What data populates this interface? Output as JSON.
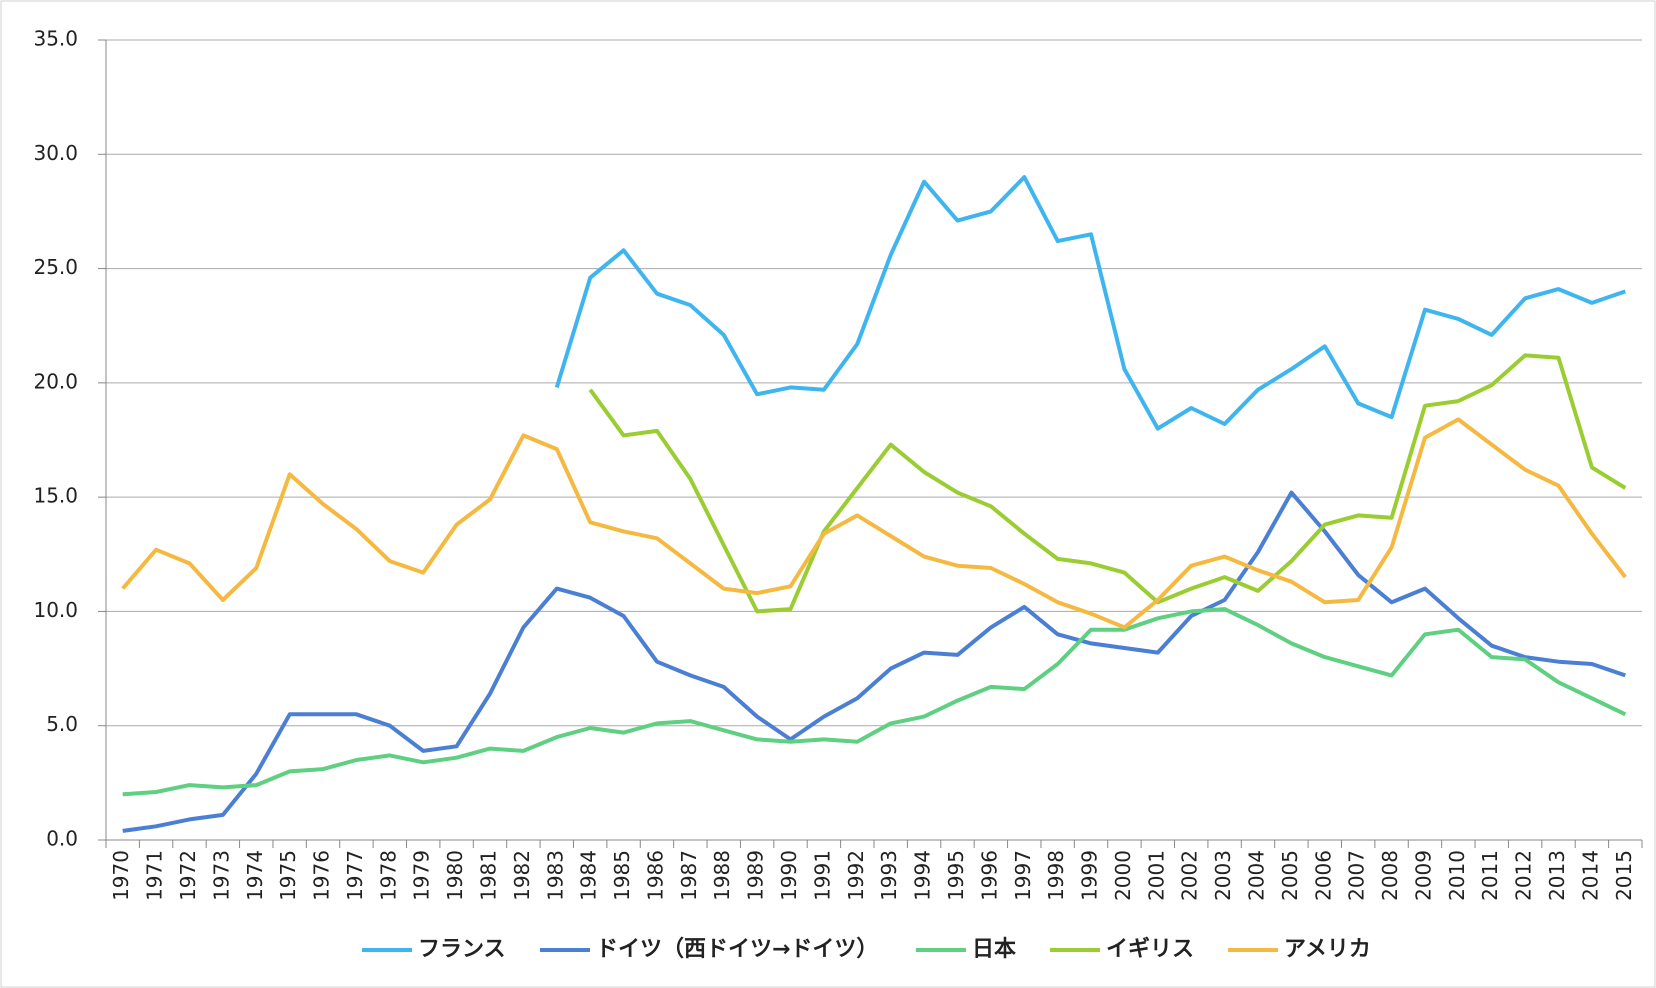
{
  "chart_data": {
    "type": "line",
    "categories": [
      "1970",
      "1971",
      "1972",
      "1973",
      "1974",
      "1975",
      "1976",
      "1977",
      "1978",
      "1979",
      "1980",
      "1981",
      "1982",
      "1983",
      "1984",
      "1985",
      "1986",
      "1987",
      "1988",
      "1989",
      "1990",
      "1991",
      "1992",
      "1993",
      "1994",
      "1995",
      "1996",
      "1997",
      "1998",
      "1999",
      "2000",
      "2001",
      "2002",
      "2003",
      "2004",
      "2005",
      "2006",
      "2007",
      "2008",
      "2009",
      "2010",
      "2011",
      "2012",
      "2013",
      "2014",
      "2015"
    ],
    "series": [
      {
        "name": "フランス",
        "color": "#3fb5f0",
        "values": [
          null,
          null,
          null,
          null,
          null,
          null,
          null,
          null,
          null,
          null,
          null,
          null,
          null,
          19.8,
          24.6,
          25.8,
          23.9,
          23.4,
          22.1,
          19.5,
          19.8,
          19.7,
          21.7,
          25.6,
          28.8,
          27.1,
          27.5,
          29.0,
          26.2,
          26.5,
          20.6,
          18.0,
          18.9,
          18.2,
          19.7,
          20.6,
          21.6,
          19.1,
          18.5,
          23.2,
          22.8,
          22.1,
          23.7,
          24.1,
          23.5,
          24.0
        ]
      },
      {
        "name": "ドイツ（西ドイツ→ドイツ）",
        "color": "#4a7fd4",
        "values": [
          0.4,
          0.6,
          0.9,
          1.1,
          2.9,
          5.5,
          5.5,
          5.5,
          5.0,
          3.9,
          4.1,
          6.4,
          9.3,
          11.0,
          10.6,
          9.8,
          7.8,
          7.2,
          6.7,
          5.4,
          4.4,
          5.4,
          6.2,
          7.5,
          8.2,
          8.1,
          9.3,
          10.2,
          9.0,
          8.6,
          8.4,
          8.2,
          9.8,
          10.5,
          12.6,
          15.2,
          13.5,
          11.6,
          10.4,
          11.0,
          9.7,
          8.5,
          8.0,
          7.8,
          7.7,
          7.2
        ]
      },
      {
        "name": "日本",
        "color": "#5fcf82",
        "values": [
          2.0,
          2.1,
          2.4,
          2.3,
          2.4,
          3.0,
          3.1,
          3.5,
          3.7,
          3.4,
          3.6,
          4.0,
          3.9,
          4.5,
          4.9,
          4.7,
          5.1,
          5.2,
          4.8,
          4.4,
          4.3,
          4.4,
          4.3,
          5.1,
          5.4,
          6.1,
          6.7,
          6.6,
          7.7,
          9.2,
          9.2,
          9.7,
          10.0,
          10.1,
          9.4,
          8.6,
          8.0,
          7.6,
          7.2,
          9.0,
          9.2,
          8.0,
          7.9,
          6.9,
          6.2,
          5.5
        ]
      },
      {
        "name": "イギリス",
        "color": "#9acd32",
        "values": [
          null,
          null,
          null,
          null,
          null,
          null,
          null,
          null,
          null,
          null,
          null,
          null,
          null,
          null,
          19.7,
          17.7,
          17.9,
          15.8,
          12.9,
          10.0,
          10.1,
          13.5,
          15.4,
          17.3,
          16.1,
          15.2,
          14.6,
          13.4,
          12.3,
          12.1,
          11.7,
          10.4,
          11.0,
          11.5,
          10.9,
          12.2,
          13.8,
          14.2,
          14.1,
          19.0,
          19.2,
          19.9,
          21.2,
          21.1,
          16.3,
          15.4
        ]
      },
      {
        "name": "アメリカ",
        "color": "#f5b942",
        "values": [
          11.0,
          12.7,
          12.1,
          10.5,
          11.9,
          16.0,
          14.7,
          13.6,
          12.2,
          11.7,
          13.8,
          14.9,
          17.7,
          17.1,
          13.9,
          13.5,
          13.2,
          12.1,
          11.0,
          10.8,
          11.1,
          13.4,
          14.2,
          13.3,
          12.4,
          12.0,
          11.9,
          11.2,
          10.4,
          9.9,
          9.3,
          10.5,
          12.0,
          12.4,
          11.8,
          11.3,
          10.4,
          10.5,
          12.8,
          17.6,
          18.4,
          17.3,
          16.2,
          15.5,
          13.4,
          11.5
        ]
      }
    ],
    "ylim": [
      0,
      35
    ],
    "yticks": [
      {
        "value": 0,
        "label": "0.0"
      },
      {
        "value": 5,
        "label": "5.0"
      },
      {
        "value": 10,
        "label": "10.0"
      },
      {
        "value": 15,
        "label": "15.0"
      },
      {
        "value": 20,
        "label": "20.0"
      },
      {
        "value": 25,
        "label": "25.0"
      },
      {
        "value": 30,
        "label": "30.0"
      },
      {
        "value": 35,
        "label": "35.0"
      }
    ],
    "grid": true,
    "legend": "bottom"
  }
}
